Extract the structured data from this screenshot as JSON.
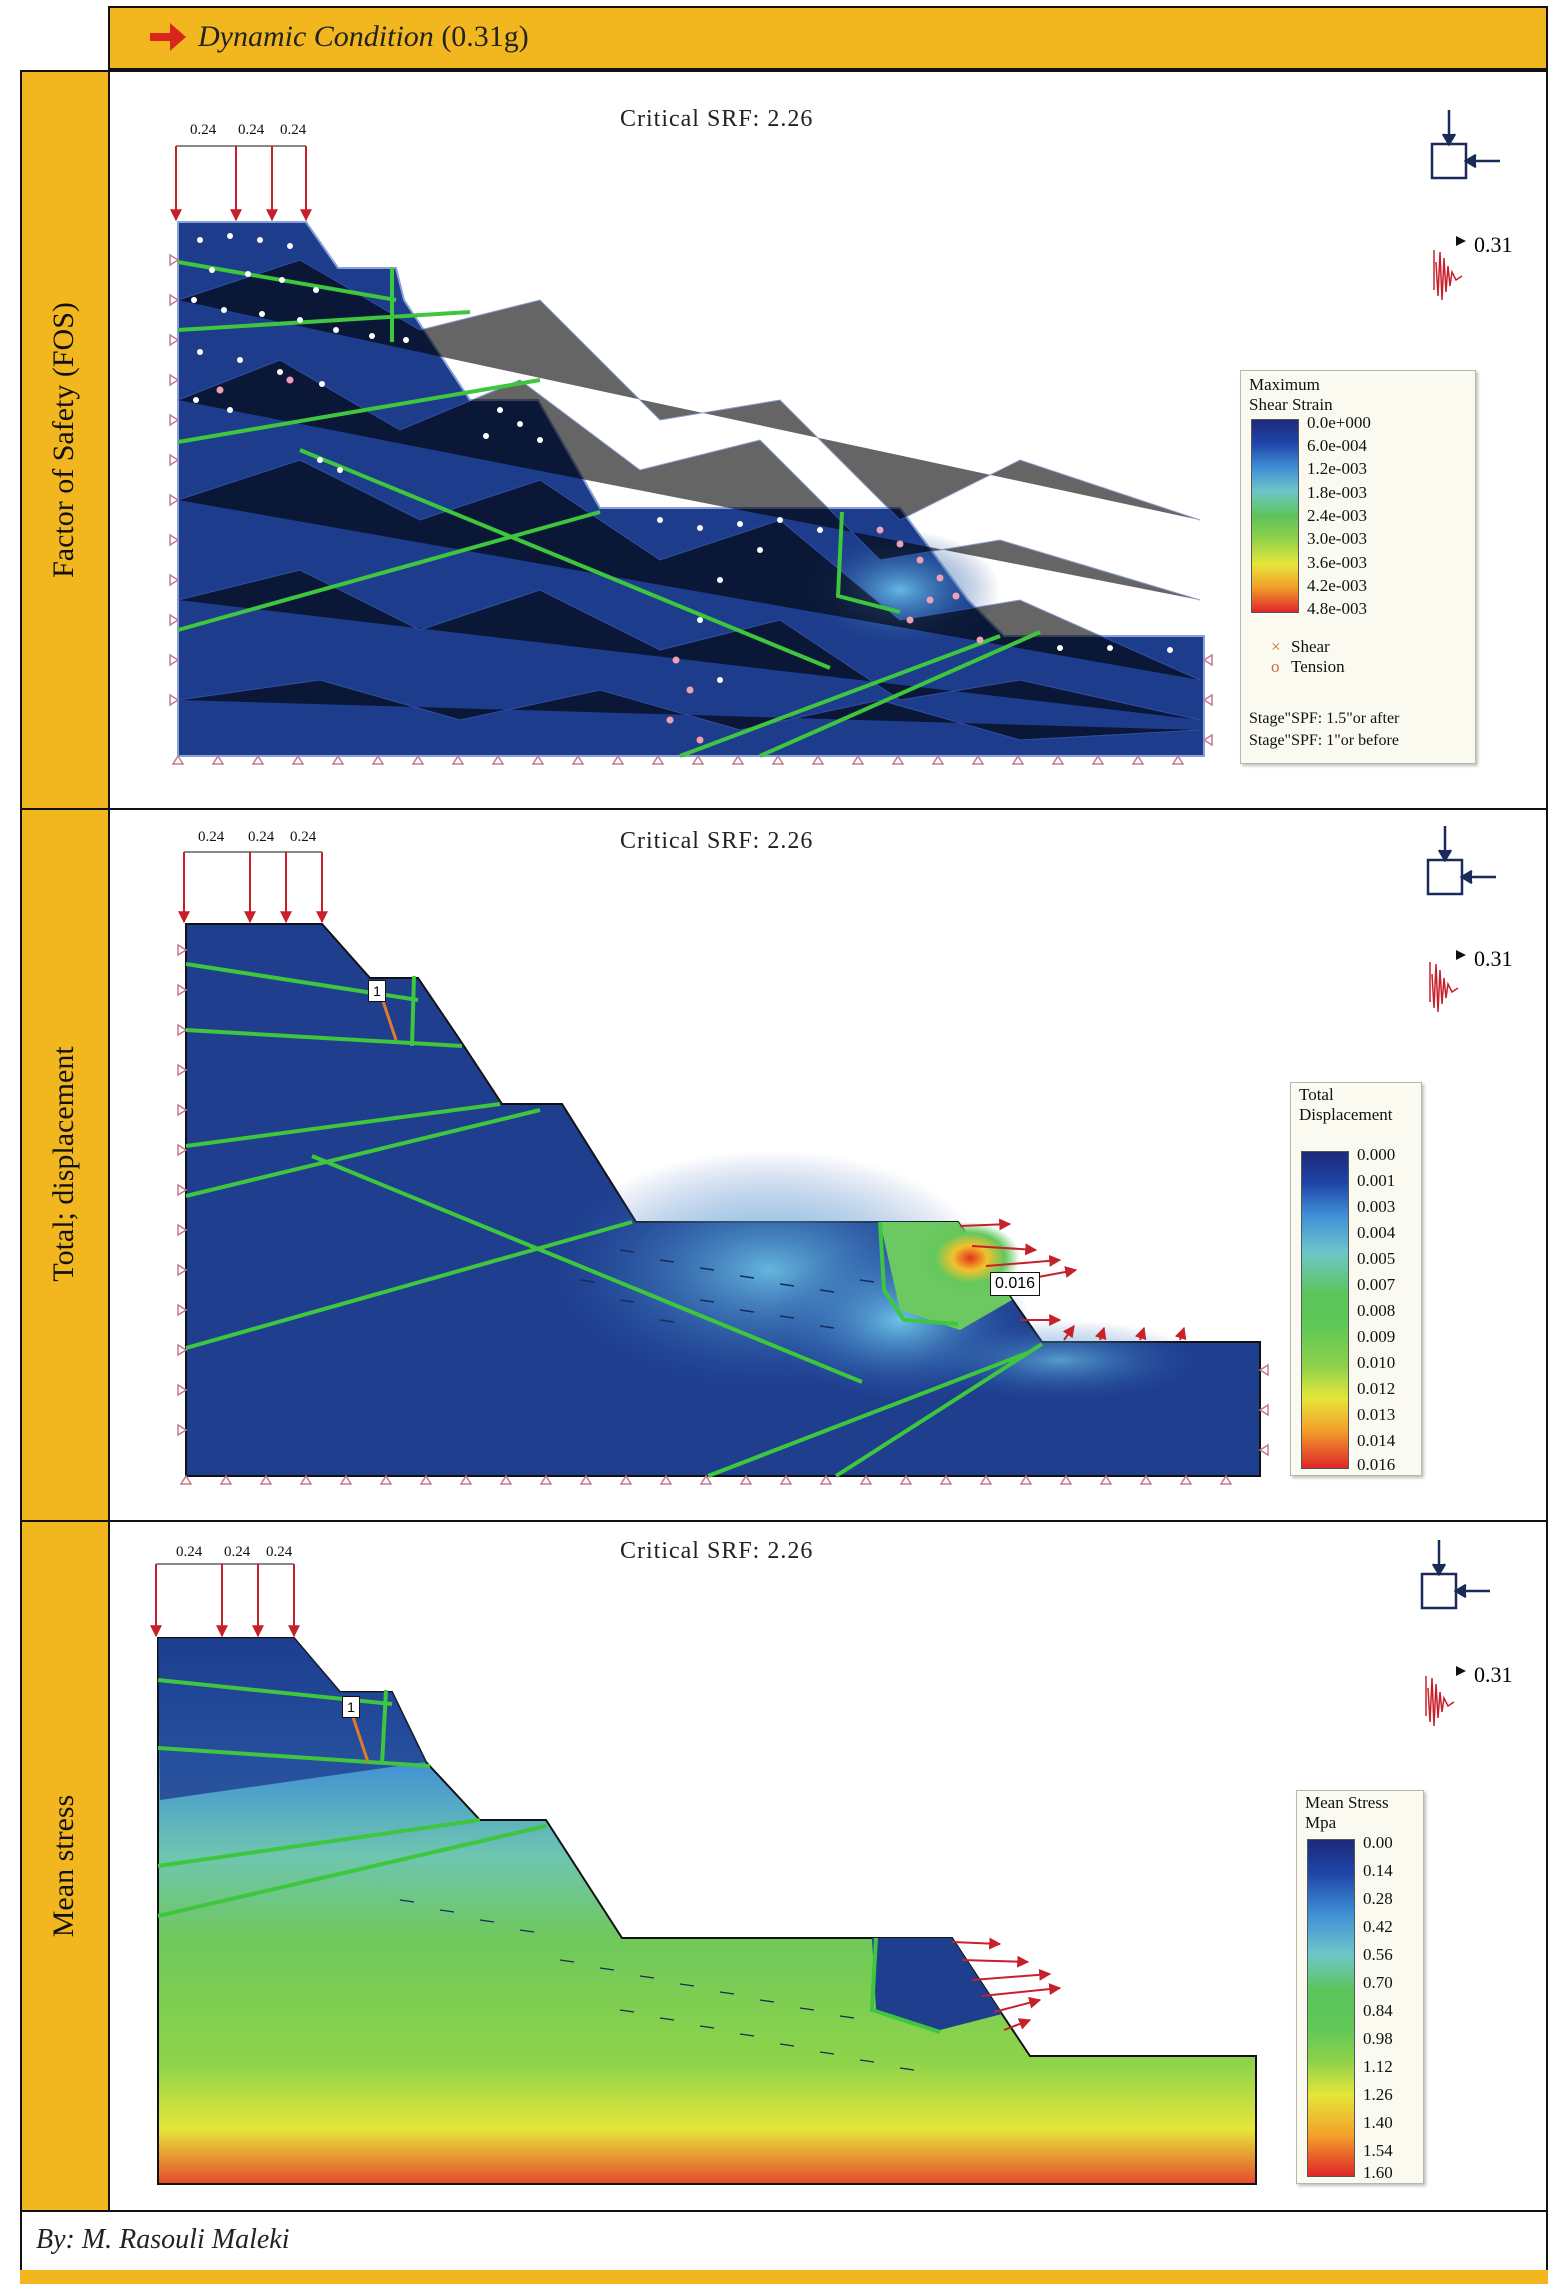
{
  "header": {
    "title": "Dynamic Condition",
    "value": "(0.31g)"
  },
  "panels": [
    {
      "id": "fos",
      "side_label": "Factor of Safety (FOS)",
      "srf_label": "Critical  SRF: 2.26",
      "loads": [
        "0.24",
        "0.24",
        "0.24"
      ],
      "seismic_label": "0.31",
      "legend": {
        "title_line1": "Maximum",
        "title_line2": "Shear Strain",
        "ticks": [
          "0.0e+000",
          "6.0e-004",
          "1.2e-003",
          "1.8e-003",
          "2.4e-003",
          "3.0e-003",
          "3.6e-003",
          "4.2e-003",
          "4.8e-003"
        ],
        "marker_shear": "Shear",
        "marker_tension": "Tension",
        "stage_line1": "Stage\"SPF: 1.5\"or after",
        "stage_line2": "Stage\"SPF: 1\"or before"
      }
    },
    {
      "id": "displacement",
      "side_label": "Total; displacement",
      "srf_label": "Critical  SRF: 2.26",
      "loads": [
        "0.24",
        "0.24",
        "0.24"
      ],
      "seismic_label": "0.31",
      "tag_max": "0.016",
      "tag_bolt": "1",
      "legend": {
        "title_line1": "Total",
        "title_line2": "Displacement",
        "ticks": [
          "0.000",
          "0.001",
          "0.003",
          "0.004",
          "0.005",
          "0.007",
          "0.008",
          "0.009",
          "0.010",
          "0.012",
          "0.013",
          "0.014",
          "0.016"
        ]
      }
    },
    {
      "id": "mean-stress",
      "side_label": "Mean stress",
      "srf_label": "Critical  SRF: 2.26",
      "loads": [
        "0.24",
        "0.24",
        "0.24"
      ],
      "seismic_label": "0.31",
      "tag_bolt": "1",
      "legend": {
        "title_line1": "Mean Stress",
        "title_line2": "Mpa",
        "ticks": [
          "0.00",
          "0.14",
          "0.28",
          "0.42",
          "0.56",
          "0.70",
          "0.84",
          "0.98",
          "1.12",
          "1.26",
          "1.40",
          "1.54",
          "1.60"
        ]
      }
    }
  ],
  "footer": {
    "author": "By: M. Rasouli Maleki"
  },
  "colors": {
    "frame_gold": "#f2b71e",
    "slope_blue": "#1d3c8c",
    "joint_green": "#3ec63e",
    "load_red": "#c8202a"
  }
}
